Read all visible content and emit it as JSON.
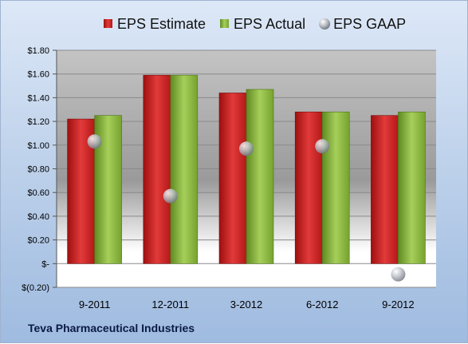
{
  "chart_data": {
    "type": "bar",
    "title": "",
    "xlabel": "",
    "ylabel": "",
    "categories": [
      "9-2011",
      "12-2011",
      "3-2012",
      "6-2012",
      "9-2012"
    ],
    "series": [
      {
        "name": "EPS Estimate",
        "kind": "bar",
        "color": "#d42626",
        "values": [
          1.22,
          1.59,
          1.44,
          1.28,
          1.25
        ]
      },
      {
        "name": "EPS Actual",
        "kind": "bar",
        "color": "#8fbf3a",
        "values": [
          1.25,
          1.59,
          1.47,
          1.28,
          1.28
        ]
      },
      {
        "name": "EPS GAAP",
        "kind": "marker",
        "color": "#b8bcc4",
        "values": [
          1.03,
          0.57,
          0.97,
          0.99,
          -0.09
        ]
      }
    ],
    "ylim": [
      -0.2,
      1.8
    ],
    "yticks": [
      -0.2,
      0,
      0.2,
      0.4,
      0.6,
      0.8,
      1.0,
      1.2,
      1.4,
      1.6,
      1.8
    ],
    "ytick_labels": [
      "$(0.20)",
      "$-",
      "$0.20",
      "$0.40",
      "$0.60",
      "$0.80",
      "$1.00",
      "$1.20",
      "$1.40",
      "$1.60",
      "$1.80"
    ],
    "grid": true,
    "legend_position": "top"
  },
  "footer": {
    "company": "Teva Pharmaceutical Industries"
  }
}
